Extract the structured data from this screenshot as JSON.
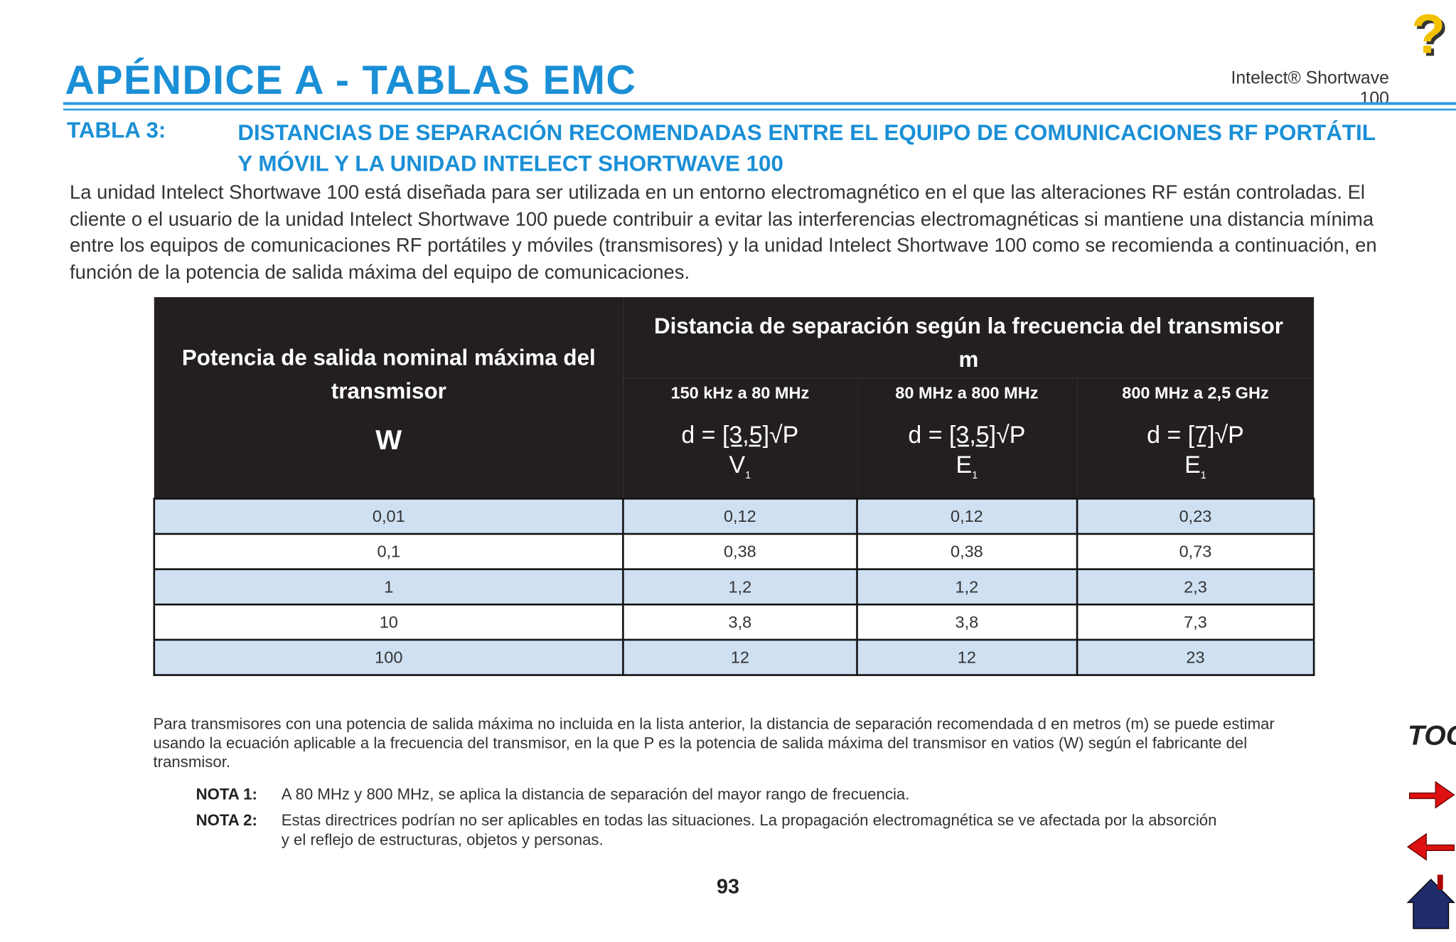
{
  "header": {
    "title": "APÉNDICE A - TABLAS EMC",
    "product": "Intelect® Shortwave 100"
  },
  "table_title": {
    "label": "TABLA 3:",
    "text": "DISTANCIAS DE SEPARACIÓN RECOMENDADAS ENTRE EL EQUIPO DE COMUNICACIONES RF PORTÁTIL Y MÓVIL Y LA UNIDAD INTELECT SHORTWAVE 100"
  },
  "intro": "La unidad Intelect Shortwave 100 está diseñada para ser utilizada en un entorno electromagnético en el que las alteraciones RF están controladas. El cliente o el usuario de la unidad Intelect Shortwave 100 puede contribuir a evitar las interferencias electromagnéticas si mantiene una distancia mínima entre los equipos de comunicaciones RF portátiles y móviles (transmisores) y la unidad Intelect Shortwave 100 como se recomienda a continuación, en función de la potencia de salida máxima del equipo de comunicaciones.",
  "table": {
    "power_header": "Potencia de salida nominal máxima del transmisor",
    "power_unit": "W",
    "distance_header": "Distancia de separación según la frecuencia del transmisor",
    "distance_unit": "m",
    "bands": [
      {
        "label": "150 kHz a 80 MHz",
        "prefix": "d =",
        "numerator": "[3,5]",
        "root": "√P",
        "denominator": "V",
        "subscript": "1"
      },
      {
        "label": "80 MHz a 800 MHz",
        "prefix": "d =",
        "numerator": "[3,5]",
        "root": "√P",
        "denominator": "E",
        "subscript": "1"
      },
      {
        "label": "800 MHz a 2,5 GHz",
        "prefix": "d =",
        "numerator": "[7]",
        "root": "√P",
        "denominator": "E",
        "subscript": "1"
      }
    ],
    "rows": [
      [
        "0,01",
        "0,12",
        "0,12",
        "0,23"
      ],
      [
        "0,1",
        "0,38",
        "0,38",
        "0,73"
      ],
      [
        "1",
        "1,2",
        "1,2",
        "2,3"
      ],
      [
        "10",
        "3,8",
        "3,8",
        "7,3"
      ],
      [
        "100",
        "12",
        "12",
        "23"
      ]
    ]
  },
  "footnote": "Para transmisores con una potencia de salida máxima no incluida en la lista anterior, la distancia de separación recomendada d en metros (m) se puede estimar usando la ecuación aplicable a la frecuencia del transmisor, en la que P es la potencia de salida máxima del transmisor en vatios (W) según el fabricante del transmisor.",
  "notes": [
    {
      "label": "NOTA 1:",
      "text": "A 80 MHz y 800 MHz, se aplica la distancia de separación del mayor rango de frecuencia."
    },
    {
      "label": "NOTA 2:",
      "text": "Estas directrices podrían no ser aplicables en todas las situaciones. La propagación electromagnética se ve afectada por la absorción y el reflejo de estructuras, objetos y personas."
    }
  ],
  "page_number": "93",
  "nav": {
    "help": "?",
    "toc": "TOC"
  }
}
